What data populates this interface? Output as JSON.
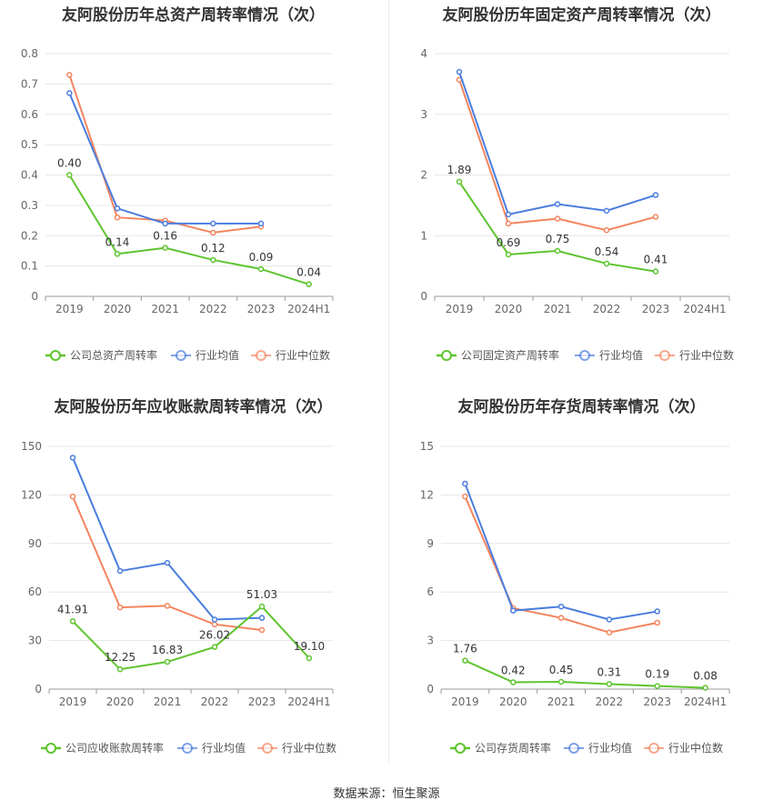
{
  "footer": {
    "prefix": "数据来源：",
    "source": "恒生聚源"
  },
  "colors": {
    "company": "#5ec42e",
    "avg": "#4a7ddd",
    "median": "#f4845f",
    "grid": "#e6e6e6",
    "axis": "#999999"
  },
  "legend_common": [
    "行业均值",
    "行业中位数"
  ],
  "chart_data": [
    {
      "type": "line",
      "title": "友阿股份历年总资产周转率情况（次）",
      "categories": [
        "2019",
        "2020",
        "2021",
        "2022",
        "2023",
        "2024H1"
      ],
      "ylim": [
        0,
        0.8
      ],
      "yticks": [
        0,
        0.1,
        0.2,
        0.3,
        0.4,
        0.5,
        0.6,
        0.7,
        0.8
      ],
      "ytick_labels": [
        "0",
        "0.1",
        "0.2",
        "0.3",
        "0.4",
        "0.5",
        "0.6",
        "0.7",
        "0.8"
      ],
      "legend_position": "bottom",
      "series": [
        {
          "name": "公司总资产周转率",
          "role": "company",
          "values": [
            0.4,
            0.14,
            0.16,
            0.12,
            0.09,
            0.04
          ],
          "labels": [
            "0.40",
            "0.14",
            "0.16",
            "0.12",
            "0.09",
            "0.04"
          ]
        },
        {
          "name": "行业均值",
          "role": "avg",
          "values": [
            0.67,
            0.29,
            0.24,
            0.24,
            0.24,
            null
          ]
        },
        {
          "name": "行业中位数",
          "role": "median",
          "values": [
            0.73,
            0.26,
            0.25,
            0.21,
            0.23,
            null
          ]
        }
      ]
    },
    {
      "type": "line",
      "title": "友阿股份历年固定资产周转率情况（次）",
      "categories": [
        "2019",
        "2020",
        "2021",
        "2022",
        "2023",
        "2024H1"
      ],
      "ylim": [
        0,
        4
      ],
      "yticks": [
        0,
        1,
        2,
        3,
        4
      ],
      "ytick_labels": [
        "0",
        "1",
        "2",
        "3",
        "4"
      ],
      "legend_position": "bottom",
      "series": [
        {
          "name": "公司固定资产周转率",
          "role": "company",
          "values": [
            1.89,
            0.69,
            0.75,
            0.54,
            0.41,
            null
          ],
          "labels": [
            "1.89",
            "0.69",
            "0.75",
            "0.54",
            "0.41",
            ""
          ]
        },
        {
          "name": "行业均值",
          "role": "avg",
          "values": [
            3.7,
            1.35,
            1.52,
            1.41,
            1.67,
            null
          ]
        },
        {
          "name": "行业中位数",
          "role": "median",
          "values": [
            3.57,
            1.2,
            1.28,
            1.09,
            1.31,
            null
          ]
        }
      ]
    },
    {
      "type": "line",
      "title": "友阿股份历年应收账款周转率情况（次）",
      "categories": [
        "2019",
        "2020",
        "2021",
        "2022",
        "2023",
        "2024H1"
      ],
      "ylim": [
        0,
        150
      ],
      "yticks": [
        0,
        30,
        60,
        90,
        120,
        150
      ],
      "ytick_labels": [
        "0",
        "30",
        "60",
        "90",
        "120",
        "150"
      ],
      "legend_position": "bottom",
      "series": [
        {
          "name": "公司应收账款周转率",
          "role": "company",
          "values": [
            41.91,
            12.25,
            16.83,
            26.02,
            51.03,
            19.1
          ],
          "labels": [
            "41.91",
            "12.25",
            "16.83",
            "26.02",
            "51.03",
            "19.10"
          ]
        },
        {
          "name": "行业均值",
          "role": "avg",
          "values": [
            143,
            73,
            78,
            43,
            44,
            null
          ]
        },
        {
          "name": "行业中位数",
          "role": "median",
          "values": [
            119,
            50.5,
            51.5,
            40,
            36.5,
            null
          ]
        }
      ]
    },
    {
      "type": "line",
      "title": "友阿股份历年存货周转率情况（次）",
      "categories": [
        "2019",
        "2020",
        "2021",
        "2022",
        "2023",
        "2024H1"
      ],
      "ylim": [
        0,
        15
      ],
      "yticks": [
        0,
        3,
        6,
        9,
        12,
        15
      ],
      "ytick_labels": [
        "0",
        "3",
        "6",
        "9",
        "12",
        "15"
      ],
      "legend_position": "bottom",
      "series": [
        {
          "name": "公司存货周转率",
          "role": "company",
          "values": [
            1.76,
            0.42,
            0.45,
            0.31,
            0.19,
            0.08
          ],
          "labels": [
            "1.76",
            "0.42",
            "0.45",
            "0.31",
            "0.19",
            "0.08"
          ]
        },
        {
          "name": "行业均值",
          "role": "avg",
          "values": [
            12.7,
            4.85,
            5.1,
            4.3,
            4.8,
            null
          ]
        },
        {
          "name": "行业中位数",
          "role": "median",
          "values": [
            11.9,
            5.0,
            4.4,
            3.5,
            4.1,
            null
          ]
        }
      ]
    }
  ]
}
